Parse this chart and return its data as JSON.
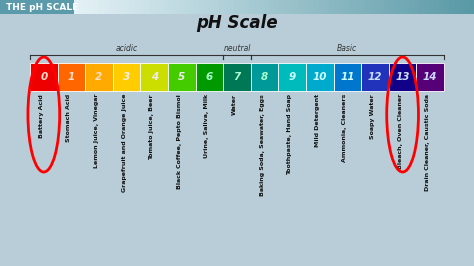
{
  "title": "pH Scale",
  "header": "THE pH SCALE",
  "bg_color": "#b8cdd8",
  "header_bg": "#5a9aaa",
  "bar_colors": [
    "#ee0000",
    "#ff6600",
    "#ffaa00",
    "#ffcc00",
    "#ccdd00",
    "#44cc00",
    "#009900",
    "#007755",
    "#009999",
    "#00bbbb",
    "#00aacc",
    "#0077cc",
    "#2233bb",
    "#110088",
    "#550077"
  ],
  "ph_numbers": [
    "0",
    "1",
    "2",
    "3",
    "4",
    "5",
    "6",
    "7",
    "8",
    "9",
    "10",
    "11",
    "12",
    "13",
    "14"
  ],
  "num_colors": [
    "#ffddcc",
    "#ffddcc",
    "#ffddcc",
    "#eeeeee",
    "#eeeeee",
    "#eeeeee",
    "#aaffcc",
    "#aaffcc",
    "#aaffcc",
    "#ccffff",
    "#ccffff",
    "#ccffff",
    "#ccddff",
    "#ccddff",
    "#ccddff"
  ],
  "labels": [
    "Battery Acid",
    "Stomach Acid",
    "Lemon Juice, Vinegar",
    "Grapefruit and Orange Juice",
    "Tomato Juice, Beer",
    "Black Coffee, Pepto Bismol",
    "Urine, Saliva, Milk",
    "Water",
    "Baking Soda, Seawater, Eggs",
    "Toothpaste, Hand Soap",
    "Mild Detergent",
    "Ammonia, Cleaners",
    "Soapy Water",
    "Bleach, Oven Cleaner",
    "Drain Cleaner, Caustic Soda"
  ],
  "acidic_label": "acidic",
  "neutral_label": "neutral",
  "basic_label": "Basic",
  "circle_indices": [
    0,
    13
  ],
  "label_fontsize": 4.5,
  "num_fontsize": 7.5
}
